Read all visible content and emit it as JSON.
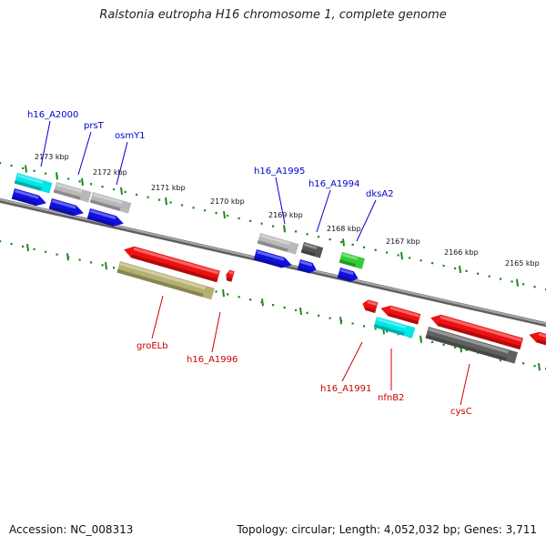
{
  "title": "Ralstonia eutropha H16 chromosome 1, complete genome",
  "accession": "Accession: NC_008313",
  "summary": "Topology: circular; Length: 4,052,032 bp; Genes: 3,711",
  "colors": {
    "backbone": "#808080",
    "ruler": "#1a8a1a",
    "forward_label": "#0000cc",
    "reverse_label": "#cc0000"
  },
  "ruler_ticks": [
    {
      "label": "2173 kbp"
    },
    {
      "label": "2172 kbp"
    },
    {
      "label": "2171 kbp"
    },
    {
      "label": "2170 kbp"
    },
    {
      "label": "2169 kbp"
    },
    {
      "label": "2168 kbp"
    },
    {
      "label": "2167 kbp"
    },
    {
      "label": "2166 kbp"
    },
    {
      "label": "2165 kbp"
    }
  ],
  "gene_labels": [
    {
      "name": "h16_A2000",
      "strand": "forward"
    },
    {
      "name": "prsT",
      "strand": "forward"
    },
    {
      "name": "osmY1",
      "strand": "forward"
    },
    {
      "name": "h16_A1995",
      "strand": "forward"
    },
    {
      "name": "h16_A1994",
      "strand": "forward"
    },
    {
      "name": "dksA2",
      "strand": "forward"
    },
    {
      "name": "groELb",
      "strand": "reverse"
    },
    {
      "name": "h16_A1996",
      "strand": "reverse"
    },
    {
      "name": "h16_A1991",
      "strand": "reverse"
    },
    {
      "name": "nfnB2",
      "strand": "reverse"
    },
    {
      "name": "cysC",
      "strand": "reverse"
    }
  ]
}
